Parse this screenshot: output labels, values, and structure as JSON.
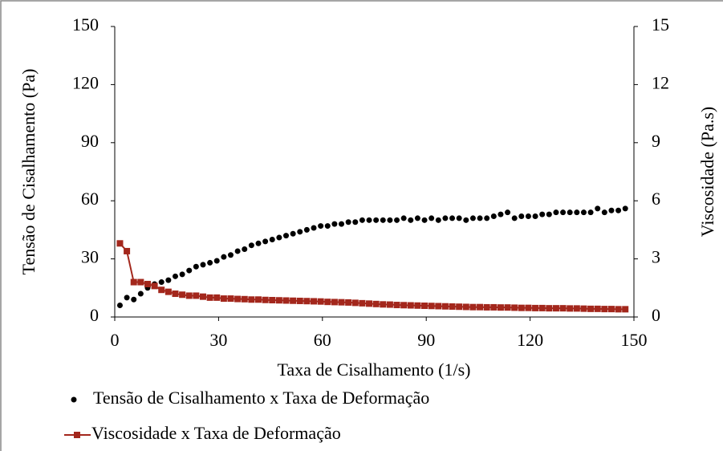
{
  "chart_data": {
    "type": "scatter-line",
    "x_label": "Taxa de Cisalhamento (1/s)",
    "y_label": "Tensão de Cisalhamento (Pa)",
    "y2_label": "Viscosidade (Pa.s)",
    "xlim": [
      0,
      150
    ],
    "xticks": [
      0,
      30,
      60,
      90,
      120,
      150
    ],
    "ylim": [
      0,
      150
    ],
    "yticks": [
      0,
      30,
      60,
      90,
      120,
      150
    ],
    "y2lim": [
      0,
      15
    ],
    "y2ticks": [
      0,
      3,
      6,
      9,
      12,
      15
    ],
    "x": [
      1.5,
      3.5,
      5.5,
      7.5,
      9.5,
      11.5,
      13.5,
      15.5,
      17.5,
      19.5,
      21.5,
      23.5,
      25.5,
      27.5,
      29.5,
      31.5,
      33.5,
      35.5,
      37.5,
      39.5,
      41.5,
      43.5,
      45.5,
      47.5,
      49.5,
      51.5,
      53.5,
      55.5,
      57.5,
      59.5,
      61.5,
      63.5,
      65.5,
      67.5,
      69.5,
      71.5,
      73.5,
      75.5,
      77.5,
      79.5,
      81.5,
      83.5,
      85.5,
      87.5,
      89.5,
      91.5,
      93.5,
      95.5,
      97.5,
      99.5,
      101.5,
      103.5,
      105.5,
      107.5,
      109.5,
      111.5,
      113.5,
      115.5,
      117.5,
      119.5,
      121.5,
      123.5,
      125.5,
      127.5,
      129.5,
      131.5,
      133.5,
      135.5,
      137.5,
      139.5,
      141.5,
      143.5,
      145.5,
      147.5
    ],
    "series": [
      {
        "name": "Tensão de Cisalhamento x Taxa de Deformação",
        "color": "#000000",
        "style": "dots",
        "values": [
          6,
          10,
          9,
          12,
          15,
          17,
          18,
          19,
          21,
          22,
          24,
          26,
          27,
          28,
          29,
          31,
          32,
          34,
          35,
          37,
          38,
          39,
          40,
          41,
          42,
          43,
          44,
          45,
          46,
          47,
          47,
          48,
          48,
          49,
          49,
          50,
          50,
          50,
          50,
          50,
          50,
          51,
          50,
          51,
          50,
          51,
          50,
          51,
          51,
          51,
          50,
          51,
          51,
          51,
          52,
          53,
          54,
          51,
          52,
          52,
          52,
          53,
          53,
          54,
          54,
          54,
          54,
          54,
          54,
          56,
          54,
          55,
          55,
          56
        ]
      },
      {
        "name": "Viscosidade x Taxa de Deformação",
        "color": "#a3271c",
        "style": "line-square",
        "axis": "y2",
        "values": [
          3.8,
          3.4,
          1.8,
          1.8,
          1.7,
          1.6,
          1.4,
          1.3,
          1.2,
          1.15,
          1.1,
          1.1,
          1.05,
          1.0,
          1.0,
          0.95,
          0.95,
          0.93,
          0.92,
          0.9,
          0.9,
          0.88,
          0.87,
          0.86,
          0.85,
          0.84,
          0.83,
          0.82,
          0.81,
          0.8,
          0.78,
          0.77,
          0.76,
          0.75,
          0.73,
          0.71,
          0.69,
          0.67,
          0.65,
          0.64,
          0.62,
          0.61,
          0.6,
          0.59,
          0.58,
          0.57,
          0.56,
          0.55,
          0.54,
          0.53,
          0.52,
          0.51,
          0.51,
          0.5,
          0.5,
          0.49,
          0.49,
          0.48,
          0.47,
          0.47,
          0.46,
          0.46,
          0.45,
          0.45,
          0.45,
          0.44,
          0.44,
          0.43,
          0.42,
          0.42,
          0.41,
          0.41,
          0.4,
          0.4
        ]
      }
    ]
  }
}
